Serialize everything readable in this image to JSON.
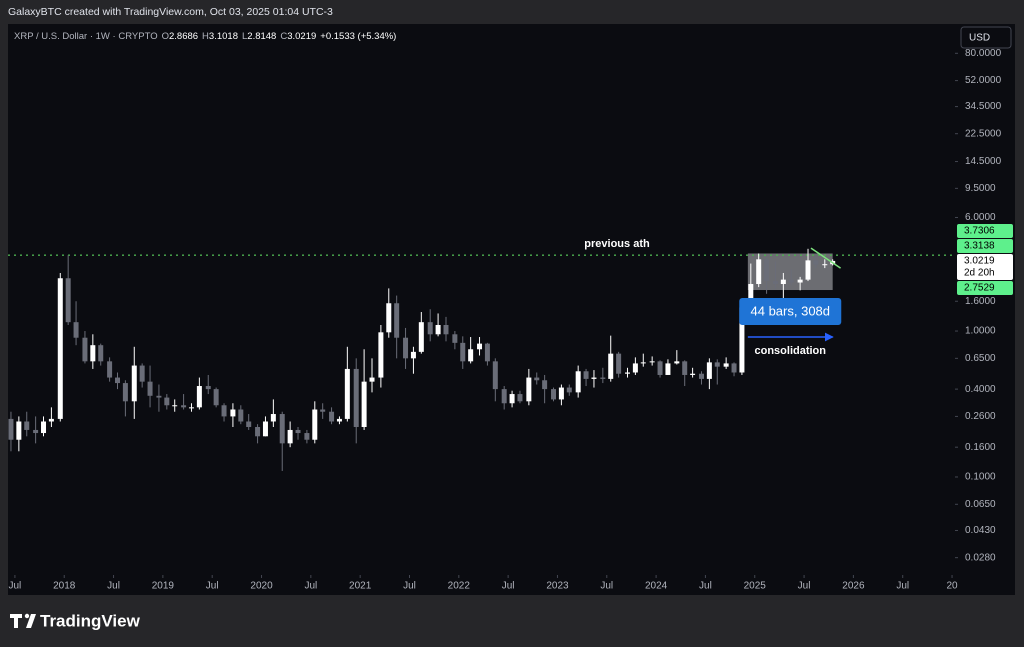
{
  "header": {
    "attribution": "GalaxyBTC created with TradingView.com, Oct 03, 2025 01:04 UTC-3"
  },
  "footer": {
    "brand": "TradingView"
  },
  "chart_data": {
    "type": "candlestick",
    "symbol": "XRP / U.S. Dollar · 1W · CRYPTO",
    "ohlc_legend": [
      {
        "label": "O",
        "value": "2.8686"
      },
      {
        "label": "H",
        "value": "3.1018"
      },
      {
        "label": "L",
        "value": "2.8148"
      },
      {
        "label": "C",
        "value": "3.0219"
      }
    ],
    "change": "+0.1533 (+5.34%)",
    "currency": "USD",
    "yscale": "log",
    "grid": false,
    "up_color": "#ffffff",
    "down_color": "#6a6d78",
    "xlim": [
      2017.43,
      2027.03
    ],
    "ylim": [
      0.0213,
      127
    ],
    "xticks": [
      {
        "value": 2017.5,
        "label": "Jul"
      },
      2018,
      {
        "value": 2018.5,
        "label": "Jul"
      },
      2019,
      {
        "value": 2019.5,
        "label": "Jul"
      },
      2020,
      {
        "value": 2020.5,
        "label": "Jul"
      },
      2021,
      {
        "value": 2021.5,
        "label": "Jul"
      },
      2022,
      {
        "value": 2022.5,
        "label": "Jul"
      },
      2023,
      {
        "value": 2023.5,
        "label": "Jul"
      },
      2024,
      {
        "value": 2024.5,
        "label": "Jul"
      },
      2025,
      {
        "value": 2025.5,
        "label": "Jul"
      },
      2026,
      {
        "value": 2026.5,
        "label": "Jul"
      },
      {
        "value": 2027,
        "label": "20"
      }
    ],
    "yticks": [
      {
        "value": 80,
        "label": "80.0000"
      },
      {
        "value": 52,
        "label": "52.0000"
      },
      {
        "value": 34.5,
        "label": "34.5000"
      },
      {
        "value": 22.5,
        "label": "22.5000"
      },
      {
        "value": 14.5,
        "label": "14.5000"
      },
      {
        "value": 9.5,
        "label": "9.5000"
      },
      {
        "value": 6,
        "label": "6.0000"
      },
      {
        "value": 1.6,
        "label": "1.6000"
      },
      {
        "value": 1,
        "label": "1.0000"
      },
      {
        "value": 0.65,
        "label": "0.6500"
      },
      {
        "value": 0.4,
        "label": "0.4000"
      },
      {
        "value": 0.26,
        "label": "0.2600"
      },
      {
        "value": 0.16,
        "label": "0.1600"
      },
      {
        "value": 0.1,
        "label": "0.1000"
      },
      {
        "value": 0.065,
        "label": "0.0650"
      },
      {
        "value": 0.043,
        "label": "0.0430"
      },
      {
        "value": 0.028,
        "label": "0.0280"
      }
    ],
    "candles": {
      "x": [
        2017.46,
        2017.54,
        2017.62,
        2017.71,
        2017.79,
        2017.87,
        2017.96,
        2018.04,
        2018.12,
        2018.21,
        2018.29,
        2018.37,
        2018.46,
        2018.54,
        2018.62,
        2018.71,
        2018.79,
        2018.87,
        2018.96,
        2019.04,
        2019.12,
        2019.21,
        2019.29,
        2019.37,
        2019.46,
        2019.54,
        2019.62,
        2019.71,
        2019.79,
        2019.87,
        2019.96,
        2020.04,
        2020.12,
        2020.21,
        2020.29,
        2020.37,
        2020.46,
        2020.54,
        2020.62,
        2020.71,
        2020.79,
        2020.87,
        2020.96,
        2021.04,
        2021.12,
        2021.21,
        2021.29,
        2021.37,
        2021.46,
        2021.54,
        2021.62,
        2021.71,
        2021.79,
        2021.87,
        2021.96,
        2022.04,
        2022.12,
        2022.21,
        2022.29,
        2022.37,
        2022.46,
        2022.54,
        2022.62,
        2022.71,
        2022.79,
        2022.87,
        2022.96,
        2023.04,
        2023.12,
        2023.21,
        2023.29,
        2023.37,
        2023.46,
        2023.54,
        2023.62,
        2023.71,
        2023.79,
        2023.87,
        2023.96,
        2024.04,
        2024.12,
        2024.21,
        2024.29,
        2024.37,
        2024.46,
        2024.54,
        2024.62,
        2024.71,
        2024.79,
        2024.87,
        2024.96,
        2025.04,
        2025.12,
        2025.21,
        2025.29,
        2025.37,
        2025.46,
        2025.54,
        2025.62,
        2025.71,
        2025.79
      ],
      "open": [
        0.25,
        0.18,
        0.24,
        0.21,
        0.2,
        0.24,
        0.25,
        2.3,
        1.15,
        0.9,
        0.62,
        0.8,
        0.62,
        0.48,
        0.44,
        0.33,
        0.58,
        0.45,
        0.36,
        0.35,
        0.31,
        0.31,
        0.3,
        0.3,
        0.42,
        0.4,
        0.31,
        0.26,
        0.29,
        0.24,
        0.22,
        0.19,
        0.24,
        0.27,
        0.17,
        0.21,
        0.2,
        0.18,
        0.29,
        0.28,
        0.24,
        0.25,
        0.55,
        0.22,
        0.45,
        0.48,
        0.98,
        1.55,
        0.9,
        0.65,
        0.72,
        1.15,
        0.95,
        1.1,
        0.95,
        0.83,
        0.62,
        0.75,
        0.82,
        0.62,
        0.4,
        0.32,
        0.37,
        0.33,
        0.48,
        0.46,
        0.4,
        0.34,
        0.41,
        0.38,
        0.53,
        0.47,
        0.48,
        0.47,
        0.7,
        0.51,
        0.52,
        0.6,
        0.61,
        0.62,
        0.5,
        0.6,
        0.62,
        0.5,
        0.51,
        0.47,
        0.61,
        0.57,
        0.6,
        0.52,
        1.45,
        2.1,
        3.1,
        2.2,
        2.1,
        2.25,
        2.15,
        2.25,
        3.05,
        2.85,
        2.8686
      ],
      "high": [
        0.28,
        0.26,
        0.28,
        0.26,
        0.26,
        0.3,
        2.5,
        3.31,
        1.6,
        1.0,
        0.95,
        0.82,
        0.66,
        0.52,
        0.46,
        0.78,
        0.6,
        0.58,
        0.43,
        0.37,
        0.34,
        0.37,
        0.32,
        0.48,
        0.5,
        0.41,
        0.32,
        0.32,
        0.31,
        0.27,
        0.23,
        0.26,
        0.34,
        0.28,
        0.24,
        0.22,
        0.21,
        0.33,
        0.32,
        0.3,
        0.26,
        0.78,
        0.65,
        0.75,
        0.65,
        1.1,
        1.96,
        1.75,
        1.05,
        0.78,
        1.35,
        1.41,
        1.32,
        1.25,
        1.0,
        0.92,
        0.91,
        0.91,
        0.83,
        0.65,
        0.42,
        0.39,
        0.39,
        0.55,
        0.52,
        0.5,
        0.41,
        0.43,
        0.43,
        0.58,
        0.55,
        0.54,
        0.56,
        0.93,
        0.72,
        0.56,
        0.66,
        0.7,
        0.67,
        0.63,
        0.64,
        0.74,
        0.63,
        0.56,
        0.53,
        0.65,
        0.64,
        0.66,
        0.61,
        1.6,
        2.9,
        3.4,
        3.2,
        3.0,
        2.5,
        2.65,
        2.35,
        3.66,
        3.4,
        3.1,
        3.1018
      ],
      "low": [
        0.15,
        0.15,
        0.19,
        0.17,
        0.19,
        0.22,
        0.24,
        1.1,
        0.8,
        0.6,
        0.55,
        0.58,
        0.45,
        0.4,
        0.26,
        0.25,
        0.41,
        0.3,
        0.28,
        0.29,
        0.28,
        0.29,
        0.28,
        0.29,
        0.37,
        0.3,
        0.24,
        0.22,
        0.23,
        0.21,
        0.17,
        0.19,
        0.22,
        0.11,
        0.16,
        0.18,
        0.17,
        0.17,
        0.25,
        0.23,
        0.23,
        0.24,
        0.17,
        0.21,
        0.38,
        0.41,
        0.9,
        0.65,
        0.55,
        0.51,
        0.7,
        0.85,
        0.92,
        0.85,
        0.75,
        0.55,
        0.6,
        0.68,
        0.58,
        0.33,
        0.29,
        0.3,
        0.32,
        0.31,
        0.43,
        0.32,
        0.33,
        0.31,
        0.36,
        0.35,
        0.42,
        0.41,
        0.44,
        0.45,
        0.48,
        0.48,
        0.5,
        0.57,
        0.58,
        0.48,
        0.5,
        0.59,
        0.42,
        0.48,
        0.43,
        0.4,
        0.43,
        0.55,
        0.49,
        0.5,
        1.42,
        2.0,
        1.8,
        1.95,
        1.61,
        2.05,
        1.9,
        2.2,
        2.7,
        2.7,
        2.8148
      ],
      "close": [
        0.18,
        0.24,
        0.21,
        0.2,
        0.24,
        0.25,
        2.3,
        1.15,
        0.9,
        0.62,
        0.8,
        0.62,
        0.48,
        0.44,
        0.33,
        0.58,
        0.45,
        0.36,
        0.35,
        0.31,
        0.31,
        0.3,
        0.3,
        0.42,
        0.4,
        0.31,
        0.26,
        0.29,
        0.24,
        0.22,
        0.19,
        0.24,
        0.27,
        0.17,
        0.21,
        0.2,
        0.18,
        0.29,
        0.28,
        0.24,
        0.25,
        0.55,
        0.22,
        0.45,
        0.48,
        0.98,
        1.55,
        0.9,
        0.65,
        0.72,
        1.15,
        0.95,
        1.1,
        0.95,
        0.83,
        0.62,
        0.75,
        0.82,
        0.62,
        0.4,
        0.32,
        0.37,
        0.33,
        0.48,
        0.46,
        0.4,
        0.34,
        0.41,
        0.38,
        0.53,
        0.47,
        0.48,
        0.47,
        0.7,
        0.51,
        0.52,
        0.6,
        0.61,
        0.62,
        0.5,
        0.6,
        0.62,
        0.5,
        0.51,
        0.47,
        0.61,
        0.57,
        0.6,
        0.52,
        1.45,
        2.1,
        3.1,
        2.2,
        2.1,
        2.25,
        2.15,
        2.25,
        3.05,
        2.85,
        2.87,
        3.0219
      ]
    },
    "price_labels": [
      {
        "value": 3.7306,
        "color": "#5ef08c"
      },
      {
        "value": 3.3138,
        "color": "#5ef08c"
      },
      {
        "value": 3.0219,
        "color": "#ffffff",
        "sub": "2d 20h"
      },
      {
        "value": 2.7529,
        "color": "#5ef08c"
      }
    ],
    "annotations": {
      "ath_label": "previous ath",
      "ath_price": 3.31,
      "ath_color": "#4caf50",
      "range_box": {
        "x": [
          2024.93,
          2025.79
        ],
        "y": [
          1.91,
          3.4
        ]
      },
      "measure_label": "44 bars, 308d",
      "consolidation_label": "consolidation",
      "trendline": {
        "x": [
          2025.57,
          2025.87
        ],
        "y": [
          3.7,
          2.7
        ],
        "color": "#7ee27e"
      }
    }
  }
}
